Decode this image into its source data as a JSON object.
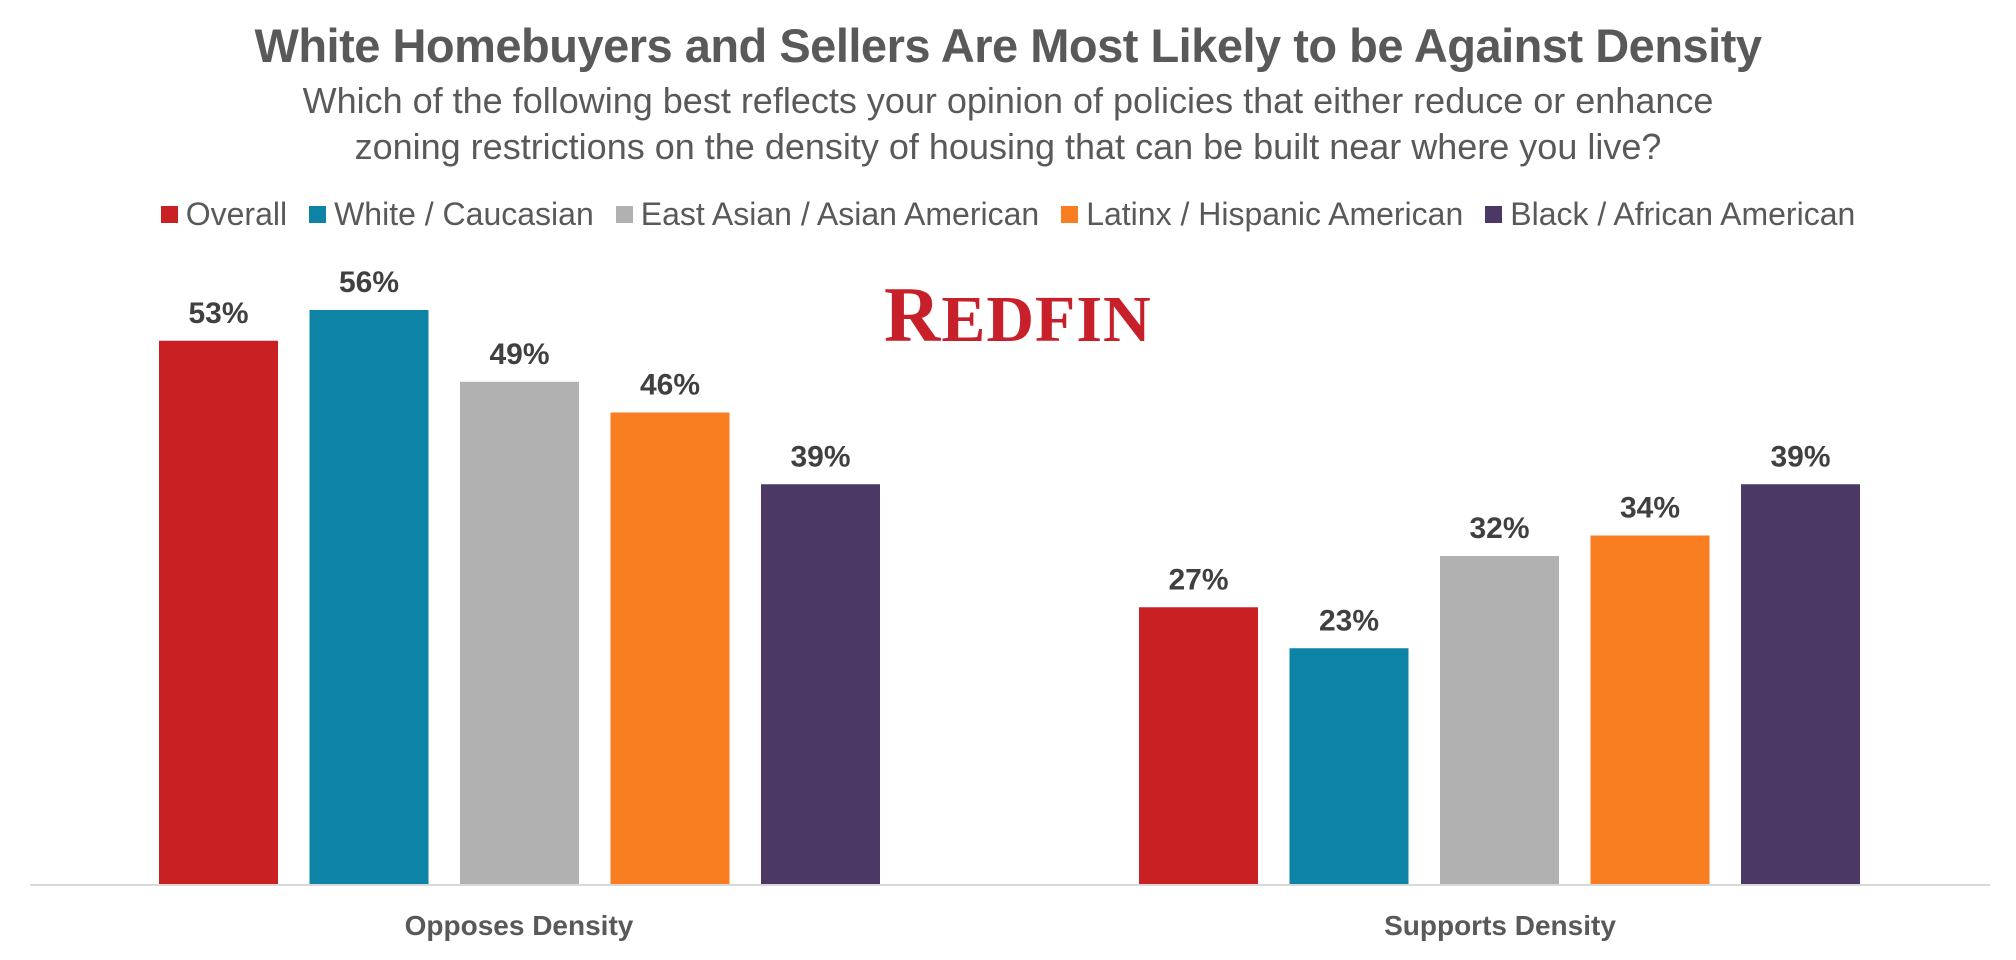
{
  "chart_data": {
    "type": "bar",
    "title": "White Homebuyers and Sellers Are Most Likely to be Against Density",
    "subtitle_lines": [
      "Which of the following best reflects your opinion of policies that either reduce or enhance",
      "zoning restrictions on the density of housing that can be built near where you live?"
    ],
    "categories": [
      "Opposes Density",
      "Supports Density"
    ],
    "series": [
      {
        "name": "Overall",
        "color": "#c82023",
        "values": [
          53,
          27
        ],
        "labels": [
          "53%",
          "27%"
        ]
      },
      {
        "name": "White / Caucasian",
        "color": "#0d84a5",
        "values": [
          56,
          23
        ],
        "labels": [
          "56%",
          "23%"
        ]
      },
      {
        "name": "East Asian / Asian American",
        "color": "#b1b1b1",
        "values": [
          49,
          32
        ],
        "labels": [
          "49%",
          "32%"
        ]
      },
      {
        "name": "Latinx / Hispanic American",
        "color": "#f97e21",
        "values": [
          46,
          34
        ],
        "labels": [
          "46%",
          "34%"
        ]
      },
      {
        "name": "Black / African American",
        "color": "#4c3865",
        "values": [
          39,
          39
        ],
        "labels": [
          "39%",
          "39%"
        ]
      }
    ],
    "xlabel": "",
    "ylabel": "",
    "ylim": [
      0,
      60
    ],
    "grid": false,
    "legend_position": "top"
  },
  "logo_text": "REDFIN"
}
